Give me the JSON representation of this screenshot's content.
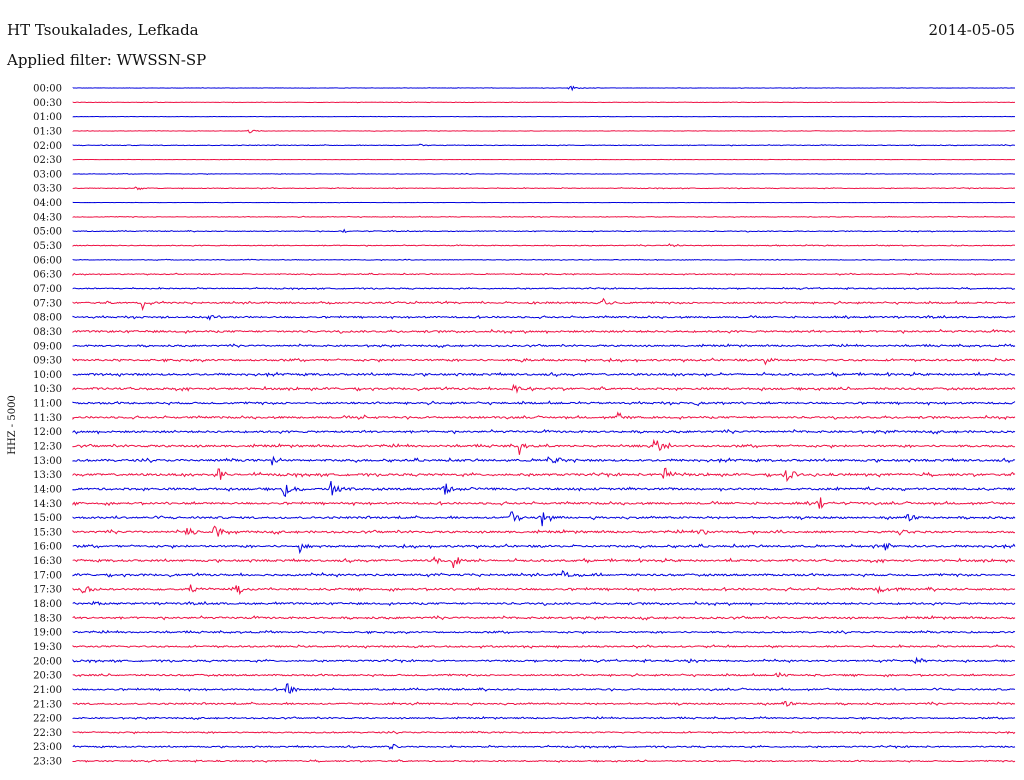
{
  "header": {
    "station": "HT Tsoukalades, Lefkada",
    "filter": "Applied filter: WWSSN-SP",
    "date": "2014-05-05"
  },
  "chart_data": {
    "type": "line",
    "title": "HT Tsoukalades, Lefkada",
    "subtitle": "Applied filter: WWSSN-SP",
    "date": "2014-05-05",
    "ylabel": "HHZ - 5000",
    "row_labels": [
      "00:00",
      "00:30",
      "01:00",
      "01:30",
      "02:00",
      "02:30",
      "03:00",
      "03:30",
      "04:00",
      "04:30",
      "05:00",
      "05:30",
      "06:00",
      "06:30",
      "07:00",
      "07:30",
      "08:00",
      "08:30",
      "09:00",
      "09:30",
      "10:00",
      "10:30",
      "11:00",
      "11:30",
      "12:00",
      "12:30",
      "13:00",
      "13:30",
      "14:00",
      "14:30",
      "15:00",
      "15:30",
      "16:00",
      "16:30",
      "17:00",
      "17:30",
      "18:00",
      "18:30",
      "19:00",
      "19:30",
      "20:00",
      "20:30",
      "21:00",
      "21:30",
      "22:00",
      "22:30",
      "23:00",
      "23:30"
    ],
    "x_range_minutes": [
      0,
      30
    ],
    "colors": {
      "even_rows": "#0000dd",
      "odd_rows": "#ee1144"
    },
    "grid": false,
    "legend": "none",
    "background_noise_level": [
      0.03,
      0.03,
      0.02,
      0.03,
      0.05,
      0.02,
      0.04,
      0.05,
      0.02,
      0.05,
      0.06,
      0.06,
      0.05,
      0.07,
      0.08,
      0.12,
      0.12,
      0.14,
      0.12,
      0.14,
      0.15,
      0.15,
      0.14,
      0.14,
      0.15,
      0.15,
      0.16,
      0.16,
      0.16,
      0.15,
      0.15,
      0.15,
      0.15,
      0.15,
      0.15,
      0.15,
      0.14,
      0.14,
      0.12,
      0.12,
      0.12,
      0.12,
      0.12,
      0.12,
      0.1,
      0.1,
      0.1,
      0.09
    ],
    "events": [
      {
        "row": 0,
        "minute": 15.8,
        "amplitude": 0.5
      },
      {
        "row": 3,
        "minute": 5.6,
        "amplitude": 0.4
      },
      {
        "row": 4,
        "minute": 11.0,
        "amplitude": 0.3
      },
      {
        "row": 7,
        "minute": 2.0,
        "amplitude": 0.4
      },
      {
        "row": 10,
        "minute": 8.6,
        "amplitude": 0.3
      },
      {
        "row": 11,
        "minute": 19.0,
        "amplitude": 0.4
      },
      {
        "row": 15,
        "minute": 2.2,
        "amplitude": 1.2
      },
      {
        "row": 15,
        "minute": 16.8,
        "amplitude": 1.1
      },
      {
        "row": 16,
        "minute": 4.3,
        "amplitude": 0.6
      },
      {
        "row": 19,
        "minute": 14.3,
        "amplitude": 0.9
      },
      {
        "row": 19,
        "minute": 22.0,
        "amplitude": 0.8
      },
      {
        "row": 21,
        "minute": 14.0,
        "amplitude": 1.1
      },
      {
        "row": 22,
        "minute": 19.8,
        "amplitude": 0.5
      },
      {
        "row": 23,
        "minute": 9.1,
        "amplitude": 0.8
      },
      {
        "row": 23,
        "minute": 17.3,
        "amplitude": 1.0
      },
      {
        "row": 25,
        "minute": 14.2,
        "amplitude": 1.4
      },
      {
        "row": 25,
        "minute": 18.5,
        "amplitude": 1.6
      },
      {
        "row": 26,
        "minute": 15.1,
        "amplitude": 1.8
      },
      {
        "row": 26,
        "minute": 6.3,
        "amplitude": 0.8
      },
      {
        "row": 27,
        "minute": 4.6,
        "amplitude": 1.5
      },
      {
        "row": 27,
        "minute": 18.8,
        "amplitude": 2.0
      },
      {
        "row": 27,
        "minute": 22.7,
        "amplitude": 1.4
      },
      {
        "row": 28,
        "minute": 6.7,
        "amplitude": 1.6
      },
      {
        "row": 28,
        "minute": 8.2,
        "amplitude": 1.7
      },
      {
        "row": 28,
        "minute": 11.8,
        "amplitude": 1.3
      },
      {
        "row": 29,
        "minute": 23.7,
        "amplitude": 1.6
      },
      {
        "row": 30,
        "minute": 13.9,
        "amplitude": 1.7
      },
      {
        "row": 30,
        "minute": 14.9,
        "amplitude": 1.9
      },
      {
        "row": 30,
        "minute": 26.5,
        "amplitude": 1.3
      },
      {
        "row": 31,
        "minute": 3.6,
        "amplitude": 1.2
      },
      {
        "row": 31,
        "minute": 4.5,
        "amplitude": 1.6
      },
      {
        "row": 31,
        "minute": 19.9,
        "amplitude": 1.3
      },
      {
        "row": 31,
        "minute": 26.3,
        "amplitude": 0.8
      },
      {
        "row": 32,
        "minute": 7.2,
        "amplitude": 1.5
      },
      {
        "row": 32,
        "minute": 25.8,
        "amplitude": 0.9
      },
      {
        "row": 33,
        "minute": 12.1,
        "amplitude": 1.3
      },
      {
        "row": 33,
        "minute": 11.5,
        "amplitude": 1.0
      },
      {
        "row": 34,
        "minute": 15.6,
        "amplitude": 1.0
      },
      {
        "row": 35,
        "minute": 0.3,
        "amplitude": 1.4
      },
      {
        "row": 35,
        "minute": 3.7,
        "amplitude": 1.0
      },
      {
        "row": 35,
        "minute": 5.2,
        "amplitude": 1.3
      },
      {
        "row": 35,
        "minute": 25.6,
        "amplitude": 0.7
      },
      {
        "row": 36,
        "minute": 0.6,
        "amplitude": 0.6
      },
      {
        "row": 39,
        "minute": 10.9,
        "amplitude": 0.5
      },
      {
        "row": 40,
        "minute": 19.6,
        "amplitude": 0.5
      },
      {
        "row": 40,
        "minute": 26.8,
        "amplitude": 0.6
      },
      {
        "row": 41,
        "minute": 22.4,
        "amplitude": 0.7
      },
      {
        "row": 42,
        "minute": 6.8,
        "amplitude": 1.2
      },
      {
        "row": 43,
        "minute": 22.6,
        "amplitude": 1.0
      },
      {
        "row": 46,
        "minute": 10.1,
        "amplitude": 0.7
      }
    ]
  }
}
